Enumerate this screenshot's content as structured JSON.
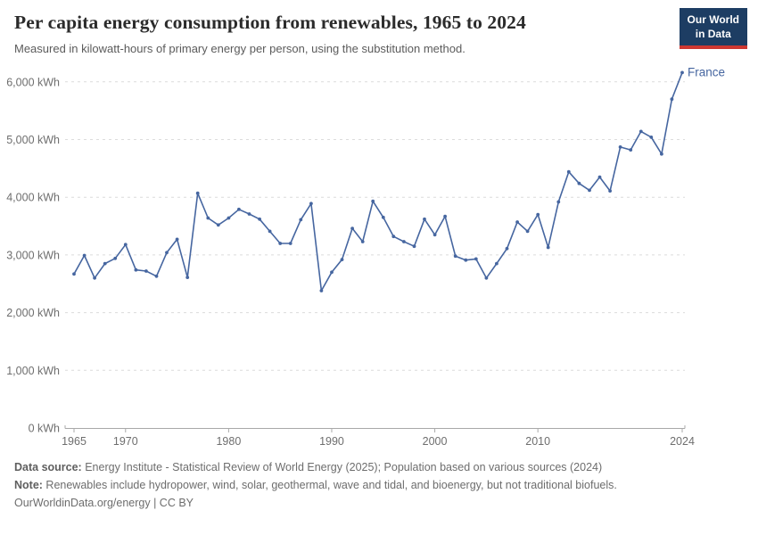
{
  "header": {
    "title": "Per capita energy consumption from renewables, 1965 to 2024",
    "subtitle": "Measured in kilowatt-hours of primary energy per person, using the substitution method.",
    "logo": {
      "line1": "Our World",
      "line2": "in Data"
    }
  },
  "chart_data": {
    "type": "line",
    "title": "Per capita energy consumption from renewables, 1965 to 2024",
    "xlabel": "",
    "ylabel": "kilowatt-hours per person",
    "xlim": [
      1965,
      2024
    ],
    "ylim": [
      0,
      6200
    ],
    "x_ticks": [
      1965,
      1970,
      1980,
      1990,
      2000,
      2010,
      2024
    ],
    "y_ticks": [
      0,
      1000,
      2000,
      3000,
      4000,
      5000,
      6000
    ],
    "y_tick_suffix": " kWh",
    "grid": "horizontal-dashed",
    "legend_position": "end-of-line",
    "series": [
      {
        "name": "France",
        "color": "#4666a0",
        "x": [
          1965,
          1966,
          1967,
          1968,
          1969,
          1970,
          1971,
          1972,
          1973,
          1974,
          1975,
          1976,
          1977,
          1978,
          1979,
          1980,
          1981,
          1982,
          1983,
          1984,
          1985,
          1986,
          1987,
          1988,
          1989,
          1990,
          1991,
          1992,
          1993,
          1994,
          1995,
          1996,
          1997,
          1998,
          1999,
          2000,
          2001,
          2002,
          2003,
          2004,
          2005,
          2006,
          2007,
          2008,
          2009,
          2010,
          2011,
          2012,
          2013,
          2014,
          2015,
          2016,
          2017,
          2018,
          2019,
          2020,
          2021,
          2022,
          2023,
          2024
        ],
        "values": [
          2670,
          2990,
          2600,
          2850,
          2940,
          3180,
          2740,
          2720,
          2630,
          3040,
          3270,
          2610,
          4070,
          3640,
          3520,
          3640,
          3790,
          3710,
          3620,
          3410,
          3200,
          3200,
          3610,
          3890,
          2380,
          2700,
          2920,
          3460,
          3230,
          3930,
          3650,
          3320,
          3230,
          3150,
          3620,
          3350,
          3670,
          2980,
          2910,
          2930,
          2600,
          2850,
          3110,
          3570,
          3410,
          3700,
          3130,
          3920,
          4440,
          4240,
          4120,
          4350,
          4110,
          4870,
          4820,
          5140,
          5040,
          4750,
          5700,
          6160
        ]
      }
    ]
  },
  "footer": {
    "source_label": "Data source:",
    "source_text": " Energy Institute - Statistical Review of World Energy (2025); Population based on various sources (2024)",
    "note_label": "Note:",
    "note_text": " Renewables include hydropower, wind, solar, geothermal, wave and tidal, and bioenergy, but not traditional biofuels.",
    "license": "OurWorldinData.org/energy | CC BY"
  },
  "colors": {
    "line": "#4666a0",
    "grid": "#dcdcdc",
    "axis": "#a9a9a9",
    "tick_text": "#6e6e6e",
    "title_text": "#2b2b2b",
    "muted_text": "#5b5b5b",
    "logo_bg": "#1d3d63",
    "logo_red": "#cd3731"
  }
}
